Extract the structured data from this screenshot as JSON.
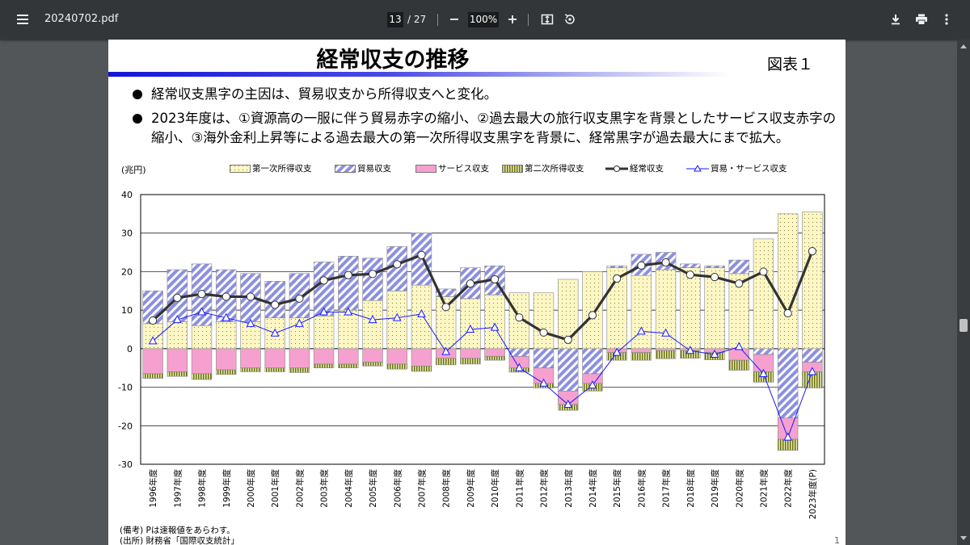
{
  "toolbar": {
    "filename": "20240702.pdf",
    "current_page": "13",
    "total_pages": "/ 27",
    "zoom": "100%",
    "icons": {
      "menu": "menu-icon",
      "zoom_out": "minus-icon",
      "zoom_in": "plus-icon",
      "fit": "fit-page-icon",
      "rotate": "rotate-icon",
      "download": "download-icon",
      "print": "print-icon",
      "more": "more-vertical-icon"
    }
  },
  "page": {
    "title": "経常収支の推移",
    "figure_label": "図表１",
    "bullets": [
      "経常収支黒字の主因は、貿易収支から所得収支へと変化。",
      "2023年度は、①資源高の一服に伴う貿易赤字の縮小、②過去最大の旅行収支黒字を背景としたサービス収支赤字の",
      "縮小、③海外金利上昇等による過去最大の第一次所得収支黒字を背景に、経常黒字が過去最大にまで拡大。"
    ],
    "unit": "(兆円)",
    "notes": [
      "(備考)  Pは速報値をあらわす。",
      "(出所)  財務省「国際収支統計」"
    ],
    "page_number": "1"
  },
  "chart_data": {
    "type": "bar",
    "stacked": true,
    "categories": [
      "1996年度",
      "1997年度",
      "1998年度",
      "1999年度",
      "2000年度",
      "2001年度",
      "2002年度",
      "2003年度",
      "2004年度",
      "2005年度",
      "2006年度",
      "2007年度",
      "2008年度",
      "2009年度",
      "2010年度",
      "2011年度",
      "2012年度",
      "2013年度",
      "2014年度",
      "2015年度",
      "2016年度",
      "2017年度",
      "2018年度",
      "2019年度",
      "2020年度",
      "2021年度",
      "2022年度",
      "2023年度(P)"
    ],
    "ylim": [
      -30,
      40
    ],
    "yticks": [
      "40",
      "30",
      "20",
      "10",
      "0",
      "-10",
      "-20",
      "-30"
    ],
    "ytick_values": [
      40,
      30,
      20,
      10,
      0,
      -10,
      -20,
      -30
    ],
    "grid": true,
    "legend_position": "top",
    "series": [
      {
        "name": "第一次所得収支",
        "kind": "bar",
        "color": "#fdf7c4",
        "values": [
          6.5,
          7.0,
          6.0,
          7.0,
          7.0,
          8.0,
          8.0,
          8.5,
          10.0,
          12.5,
          15.0,
          16.5,
          13.5,
          13.0,
          14.0,
          14.5,
          14.5,
          18.0,
          20.0,
          21.0,
          19.0,
          20.5,
          21.0,
          21.0,
          19.5,
          28.5,
          35.0,
          35.5
        ]
      },
      {
        "name": "貿易収支",
        "kind": "bar",
        "color": "#aeb3e8",
        "values": [
          8.5,
          13.5,
          16.0,
          13.5,
          12.5,
          9.5,
          11.5,
          14.0,
          14.0,
          11.0,
          11.5,
          13.5,
          2.0,
          8.0,
          7.5,
          -2.0,
          -5.0,
          -11.0,
          -6.5,
          0.5,
          5.5,
          4.5,
          1.0,
          0.5,
          3.5,
          -1.5,
          -18.0,
          -3.5
        ]
      },
      {
        "name": "サービス収支",
        "kind": "bar",
        "color": "#f5a0cf",
        "values": [
          -6.5,
          -6.0,
          -6.5,
          -5.5,
          -5.0,
          -5.0,
          -5.0,
          -4.0,
          -4.0,
          -3.5,
          -4.0,
          -4.5,
          -2.5,
          -2.5,
          -2.0,
          -3.0,
          -4.0,
          -3.5,
          -2.5,
          -1.0,
          -1.0,
          -0.5,
          -0.5,
          -1.0,
          -3.0,
          -4.5,
          -5.5,
          -2.5
        ]
      },
      {
        "name": "第二次所得収支",
        "kind": "bar",
        "color": "#a8b02a",
        "values": [
          -1.2,
          -1.2,
          -1.5,
          -1.2,
          -1.0,
          -1.0,
          -1.2,
          -1.0,
          -1.0,
          -1.0,
          -1.3,
          -1.4,
          -1.7,
          -1.5,
          -1.0,
          -1.1,
          -1.2,
          -1.5,
          -2.0,
          -2.0,
          -2.0,
          -2.1,
          -2.0,
          -1.9,
          -2.6,
          -2.7,
          -2.9,
          -4.2
        ]
      },
      {
        "name": "経常収支",
        "kind": "line",
        "color": "#333333",
        "values": [
          7.3,
          13.2,
          14.2,
          13.5,
          13.5,
          11.4,
          13.0,
          17.7,
          19.1,
          19.4,
          21.9,
          24.3,
          10.8,
          16.9,
          18.0,
          8.1,
          4.2,
          2.3,
          8.7,
          18.2,
          21.6,
          22.4,
          19.2,
          18.6,
          16.9,
          20.0,
          9.2,
          25.3
        ]
      },
      {
        "name": "貿易・サービス収支",
        "kind": "line",
        "color": "#1a1aff",
        "values": [
          2.0,
          7.5,
          9.5,
          8.0,
          6.5,
          4.0,
          6.5,
          9.5,
          9.5,
          7.5,
          8.0,
          9.0,
          -0.8,
          5.0,
          5.5,
          -5.0,
          -9.0,
          -14.5,
          -9.5,
          -1.0,
          4.5,
          4.0,
          -0.5,
          -1.5,
          0.5,
          -6.5,
          -23.0,
          -6.0
        ]
      }
    ]
  }
}
